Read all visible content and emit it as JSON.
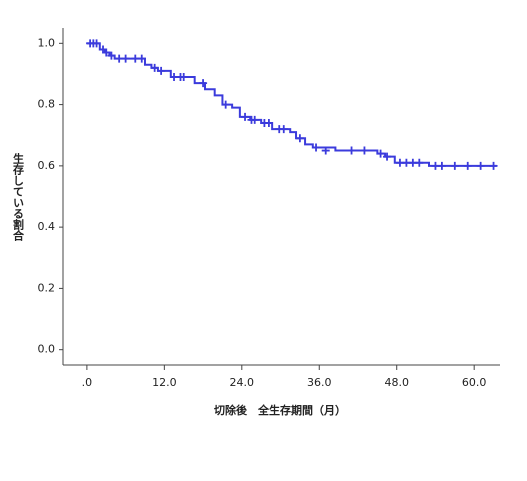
{
  "chart_data": {
    "type": "survival",
    "x_label": "切除後　全生存期間（月）",
    "y_label": "生存している割合",
    "xlim": [
      -3.7,
      64
    ],
    "ylim": [
      -0.05,
      1.05
    ],
    "xticks": [
      {
        "value": 0,
        "label": ".0"
      },
      {
        "value": 12,
        "label": "12.0"
      },
      {
        "value": 24,
        "label": "24.0"
      },
      {
        "value": 36,
        "label": "36.0"
      },
      {
        "value": 48,
        "label": "48.0"
      },
      {
        "value": 60,
        "label": "60.0"
      }
    ],
    "yticks": [
      {
        "value": 0,
        "label": "0.0"
      },
      0.2,
      0.4,
      0.6,
      0.8,
      {
        "value": 1,
        "label": "1.0"
      }
    ],
    "series": [
      {
        "color": "#3b3bdc",
        "x": [
          0,
          2,
          2.8,
          3.5,
          4.3,
          9,
          10,
          11,
          13,
          16.7,
          18.3,
          19.8,
          21,
          22.5,
          23.7,
          25.3,
          27,
          28.7,
          31.5,
          32.4,
          33.8,
          35,
          38.5,
          45,
          46.2,
          47.7,
          53,
          63.5
        ],
        "values": [
          1.0,
          0.98,
          0.97,
          0.96,
          0.95,
          0.93,
          0.92,
          0.91,
          0.89,
          0.87,
          0.85,
          0.83,
          0.8,
          0.79,
          0.76,
          0.75,
          0.74,
          0.72,
          0.71,
          0.69,
          0.67,
          0.66,
          0.65,
          0.64,
          0.63,
          0.61,
          0.6,
          0.6
        ],
        "censor_x": [
          0.5,
          1,
          1.5,
          2.5,
          3,
          3.8,
          5,
          6,
          7.5,
          8.5,
          10.5,
          11.5,
          13.5,
          14.5,
          15,
          18,
          21.5,
          24.5,
          25.5,
          26,
          27.5,
          28.2,
          29.8,
          30.5,
          33,
          35.5,
          37,
          41,
          43,
          45.5,
          46.5,
          48.5,
          49.5,
          50.5,
          51.5,
          54,
          55,
          57,
          59,
          61,
          63
        ],
        "censor_values": [
          1.0,
          1.0,
          1.0,
          0.98,
          0.97,
          0.96,
          0.95,
          0.95,
          0.95,
          0.95,
          0.92,
          0.91,
          0.89,
          0.89,
          0.89,
          0.87,
          0.8,
          0.76,
          0.75,
          0.75,
          0.74,
          0.74,
          0.72,
          0.72,
          0.69,
          0.66,
          0.65,
          0.65,
          0.65,
          0.64,
          0.63,
          0.61,
          0.61,
          0.61,
          0.61,
          0.6,
          0.6,
          0.6,
          0.6,
          0.6,
          0.6
        ]
      }
    ]
  }
}
